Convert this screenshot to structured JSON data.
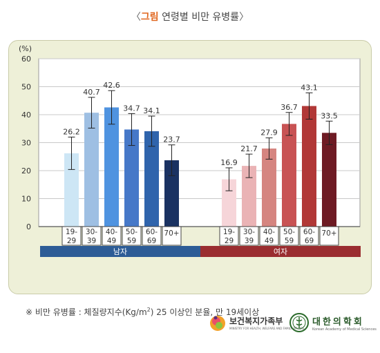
{
  "title": {
    "open": "〈",
    "highlight": "그림",
    "text": "연령별 비만 유병률",
    "close": "〉"
  },
  "chart_data": {
    "type": "bar",
    "yunit": "(%)",
    "ylim": [
      0,
      60
    ],
    "yticks": [
      0,
      10,
      20,
      30,
      40,
      50,
      60
    ],
    "grid": true,
    "groups": [
      {
        "name": "남자",
        "color": "#2d5c96",
        "categories": [
          "19-\n29",
          "30-\n39",
          "40-\n49",
          "50-\n59",
          "60-\n69",
          "70+"
        ],
        "values": [
          26.2,
          40.7,
          42.6,
          34.7,
          34.1,
          23.7
        ],
        "err_low": [
          20.4,
          35.2,
          36.6,
          29.0,
          28.7,
          18.2
        ],
        "err_high": [
          32.0,
          46.2,
          48.6,
          40.4,
          39.5,
          29.2
        ],
        "colors": [
          "#cde6f5",
          "#9ebfe3",
          "#4f93e0",
          "#4678c8",
          "#2f64ac",
          "#1a3262"
        ]
      },
      {
        "name": "여자",
        "color": "#9a2d30",
        "categories": [
          "19-\n29",
          "30-\n39",
          "40-\n49",
          "50-\n59",
          "60-\n69",
          "70+"
        ],
        "values": [
          16.9,
          21.7,
          27.9,
          36.7,
          43.1,
          33.5
        ],
        "err_low": [
          12.8,
          17.5,
          24.1,
          32.6,
          38.4,
          29.3
        ],
        "err_high": [
          21.0,
          25.9,
          31.7,
          40.8,
          47.8,
          37.7
        ],
        "colors": [
          "#f6d5d9",
          "#eab3b5",
          "#d58580",
          "#c85354",
          "#b13837",
          "#6e1b24"
        ]
      }
    ]
  },
  "footnote": {
    "prefix": "※ 비만 유병률 : 체질량지수(Kg/m",
    "sup": "2",
    "suffix": ") 25 이상인 분율, 만 19세이상"
  },
  "logos": {
    "ministry_name": "보건복지가족부",
    "ministry_sub": "MINISTRY FOR HEALTH, WELFARE AND FAMILY AFFAIRS",
    "academy_name": "대한의학회",
    "academy_sub": "Korean Academy of Medical Sciences"
  }
}
